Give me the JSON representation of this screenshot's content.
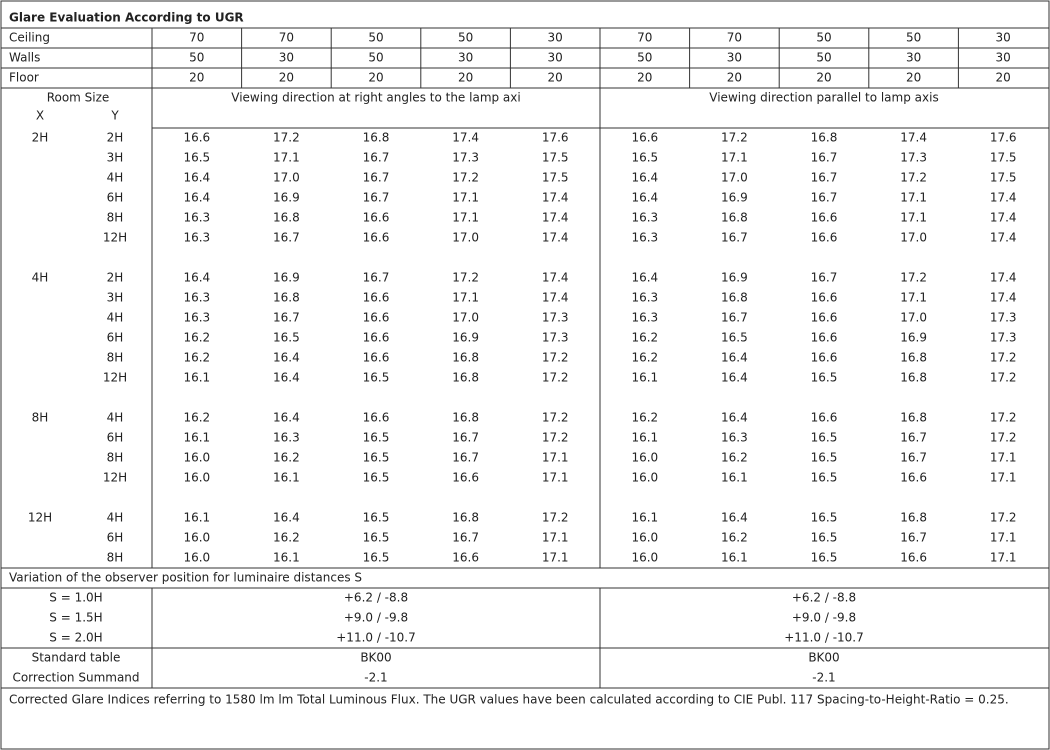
{
  "title": "Glare Evaluation According to UGR",
  "reflectances": [
    {
      "label": "Ceiling",
      "values": [
        70,
        70,
        50,
        50,
        30,
        70,
        70,
        50,
        50,
        30
      ]
    },
    {
      "label": "Walls",
      "values": [
        50,
        30,
        50,
        30,
        30,
        50,
        30,
        50,
        30,
        30
      ]
    },
    {
      "label": "Floor",
      "values": [
        20,
        20,
        20,
        20,
        20,
        20,
        20,
        20,
        20,
        20
      ]
    }
  ],
  "header": {
    "room_size": "Room Size",
    "x": "X",
    "y": "Y",
    "directions": [
      "Viewing direction at right angles to the lamp axi",
      "Viewing direction parallel to lamp axis"
    ]
  },
  "groups": [
    {
      "x": "2H",
      "rows": [
        {
          "y": "2H",
          "values": [
            "16.6",
            "17.2",
            "16.8",
            "17.4",
            "17.6",
            "16.6",
            "17.2",
            "16.8",
            "17.4",
            "17.6"
          ]
        },
        {
          "y": "3H",
          "values": [
            "16.5",
            "17.1",
            "16.7",
            "17.3",
            "17.5",
            "16.5",
            "17.1",
            "16.7",
            "17.3",
            "17.5"
          ]
        },
        {
          "y": "4H",
          "values": [
            "16.4",
            "17.0",
            "16.7",
            "17.2",
            "17.5",
            "16.4",
            "17.0",
            "16.7",
            "17.2",
            "17.5"
          ]
        },
        {
          "y": "6H",
          "values": [
            "16.4",
            "16.9",
            "16.7",
            "17.1",
            "17.4",
            "16.4",
            "16.9",
            "16.7",
            "17.1",
            "17.4"
          ]
        },
        {
          "y": "8H",
          "values": [
            "16.3",
            "16.8",
            "16.6",
            "17.1",
            "17.4",
            "16.3",
            "16.8",
            "16.6",
            "17.1",
            "17.4"
          ]
        },
        {
          "y": "12H",
          "values": [
            "16.3",
            "16.7",
            "16.6",
            "17.0",
            "17.4",
            "16.3",
            "16.7",
            "16.6",
            "17.0",
            "17.4"
          ]
        }
      ]
    },
    {
      "x": "4H",
      "rows": [
        {
          "y": "2H",
          "values": [
            "16.4",
            "16.9",
            "16.7",
            "17.2",
            "17.4",
            "16.4",
            "16.9",
            "16.7",
            "17.2",
            "17.4"
          ]
        },
        {
          "y": "3H",
          "values": [
            "16.3",
            "16.8",
            "16.6",
            "17.1",
            "17.4",
            "16.3",
            "16.8",
            "16.6",
            "17.1",
            "17.4"
          ]
        },
        {
          "y": "4H",
          "values": [
            "16.3",
            "16.7",
            "16.6",
            "17.0",
            "17.3",
            "16.3",
            "16.7",
            "16.6",
            "17.0",
            "17.3"
          ]
        },
        {
          "y": "6H",
          "values": [
            "16.2",
            "16.5",
            "16.6",
            "16.9",
            "17.3",
            "16.2",
            "16.5",
            "16.6",
            "16.9",
            "17.3"
          ]
        },
        {
          "y": "8H",
          "values": [
            "16.2",
            "16.4",
            "16.6",
            "16.8",
            "17.2",
            "16.2",
            "16.4",
            "16.6",
            "16.8",
            "17.2"
          ]
        },
        {
          "y": "12H",
          "values": [
            "16.1",
            "16.4",
            "16.5",
            "16.8",
            "17.2",
            "16.1",
            "16.4",
            "16.5",
            "16.8",
            "17.2"
          ]
        }
      ]
    },
    {
      "x": "8H",
      "rows": [
        {
          "y": "4H",
          "values": [
            "16.2",
            "16.4",
            "16.6",
            "16.8",
            "17.2",
            "16.2",
            "16.4",
            "16.6",
            "16.8",
            "17.2"
          ]
        },
        {
          "y": "6H",
          "values": [
            "16.1",
            "16.3",
            "16.5",
            "16.7",
            "17.2",
            "16.1",
            "16.3",
            "16.5",
            "16.7",
            "17.2"
          ]
        },
        {
          "y": "8H",
          "values": [
            "16.0",
            "16.2",
            "16.5",
            "16.7",
            "17.1",
            "16.0",
            "16.2",
            "16.5",
            "16.7",
            "17.1"
          ]
        },
        {
          "y": "12H",
          "values": [
            "16.0",
            "16.1",
            "16.5",
            "16.6",
            "17.1",
            "16.0",
            "16.1",
            "16.5",
            "16.6",
            "17.1"
          ]
        }
      ]
    },
    {
      "x": "12H",
      "rows": [
        {
          "y": "4H",
          "values": [
            "16.1",
            "16.4",
            "16.5",
            "16.8",
            "17.2",
            "16.1",
            "16.4",
            "16.5",
            "16.8",
            "17.2"
          ]
        },
        {
          "y": "6H",
          "values": [
            "16.0",
            "16.2",
            "16.5",
            "16.7",
            "17.1",
            "16.0",
            "16.2",
            "16.5",
            "16.7",
            "17.1"
          ]
        },
        {
          "y": "8H",
          "values": [
            "16.0",
            "16.1",
            "16.5",
            "16.6",
            "17.1",
            "16.0",
            "16.1",
            "16.5",
            "16.6",
            "17.1"
          ]
        }
      ]
    }
  ],
  "variation": {
    "title": "Variation of the observer position for luminaire distances S",
    "rows": [
      {
        "label": "S = 1.0H",
        "values": [
          "+6.2 / -8.8",
          "+6.2 / -8.8"
        ]
      },
      {
        "label": "S = 1.5H",
        "values": [
          "+9.0 / -9.8",
          "+9.0 / -9.8"
        ]
      },
      {
        "label": "S = 2.0H",
        "values": [
          "+11.0 / -10.7",
          "+11.0 / -10.7"
        ]
      }
    ]
  },
  "summary": [
    {
      "label": "Standard table",
      "values": [
        "BK00",
        "BK00"
      ]
    },
    {
      "label": "Correction Summand",
      "values": [
        "-2.1",
        "-2.1"
      ]
    }
  ],
  "footer": "Corrected Glare Indices referring to 1580 lm lm Total Luminous Flux. The UGR values have been calculated according to CIE Publ. 117    Spacing-to-Height-Ratio = 0.25."
}
